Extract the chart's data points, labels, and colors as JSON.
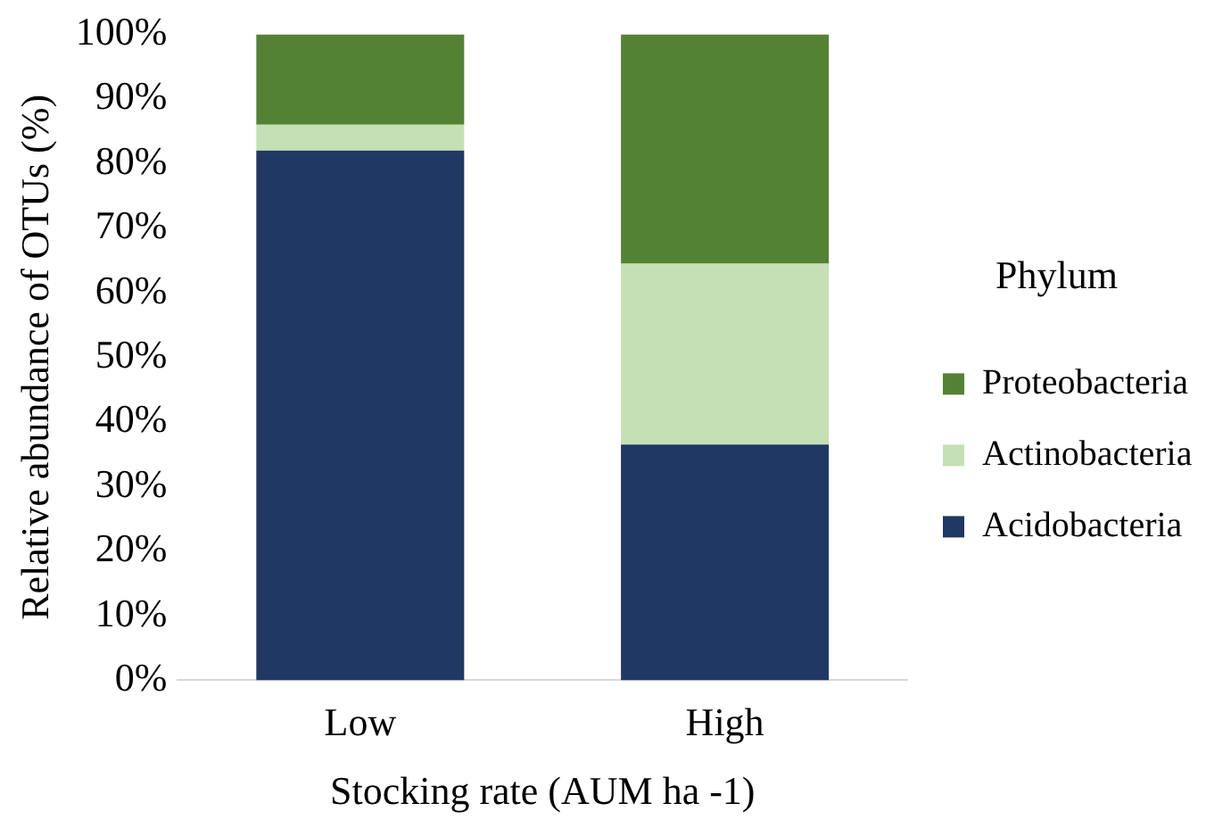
{
  "chart_data": {
    "type": "bar",
    "stacked": true,
    "xlabel": "Stocking rate (AUM ha -1)",
    "ylabel": "Relative abundance of OTUs (%)",
    "legend_title": "Phylum",
    "legend": "right",
    "categories": [
      "Low",
      "High"
    ],
    "series": [
      {
        "name": "Acidobacteria",
        "color": "#203864",
        "values": [
          82,
          36.5
        ]
      },
      {
        "name": "Actinobacteria",
        "color": "#c5e0b4",
        "values": [
          4,
          28
        ]
      },
      {
        "name": "Proteobacteria",
        "color": "#548235",
        "values": [
          14,
          35.5
        ]
      }
    ],
    "ylim": [
      0,
      100
    ],
    "yticks": [
      {
        "value": 0,
        "label": "0%"
      },
      {
        "value": 10,
        "label": "10%"
      },
      {
        "value": 20,
        "label": "20%"
      },
      {
        "value": 30,
        "label": "30%"
      },
      {
        "value": 40,
        "label": "40%"
      },
      {
        "value": 50,
        "label": "50%"
      },
      {
        "value": 60,
        "label": "60%"
      },
      {
        "value": 70,
        "label": "70%"
      },
      {
        "value": 80,
        "label": "80%"
      },
      {
        "value": 90,
        "label": "90%"
      },
      {
        "value": 100,
        "label": "100%"
      }
    ],
    "grid": false
  }
}
